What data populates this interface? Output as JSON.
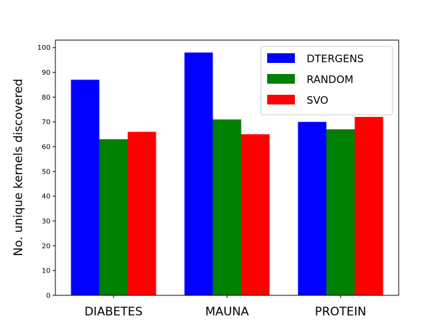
{
  "chart_data": {
    "type": "bar",
    "title": "",
    "xlabel": "",
    "ylabel": "No. unique kernels discovered",
    "categories": [
      "DIABETES",
      "MAUNA",
      "PROTEIN"
    ],
    "series": [
      {
        "name": "DTERGENS",
        "color": "#0000ff",
        "values": [
          87,
          98,
          70
        ]
      },
      {
        "name": "RANDOM",
        "color": "#008000",
        "values": [
          63,
          71,
          67
        ]
      },
      {
        "name": "SVO",
        "color": "#ff0000",
        "values": [
          66,
          65,
          72
        ]
      }
    ],
    "ylim": [
      0,
      103
    ],
    "yticks": [
      0,
      10,
      20,
      30,
      40,
      50,
      60,
      70,
      80,
      90,
      100
    ],
    "grid": false,
    "legend_position": "top-right"
  }
}
